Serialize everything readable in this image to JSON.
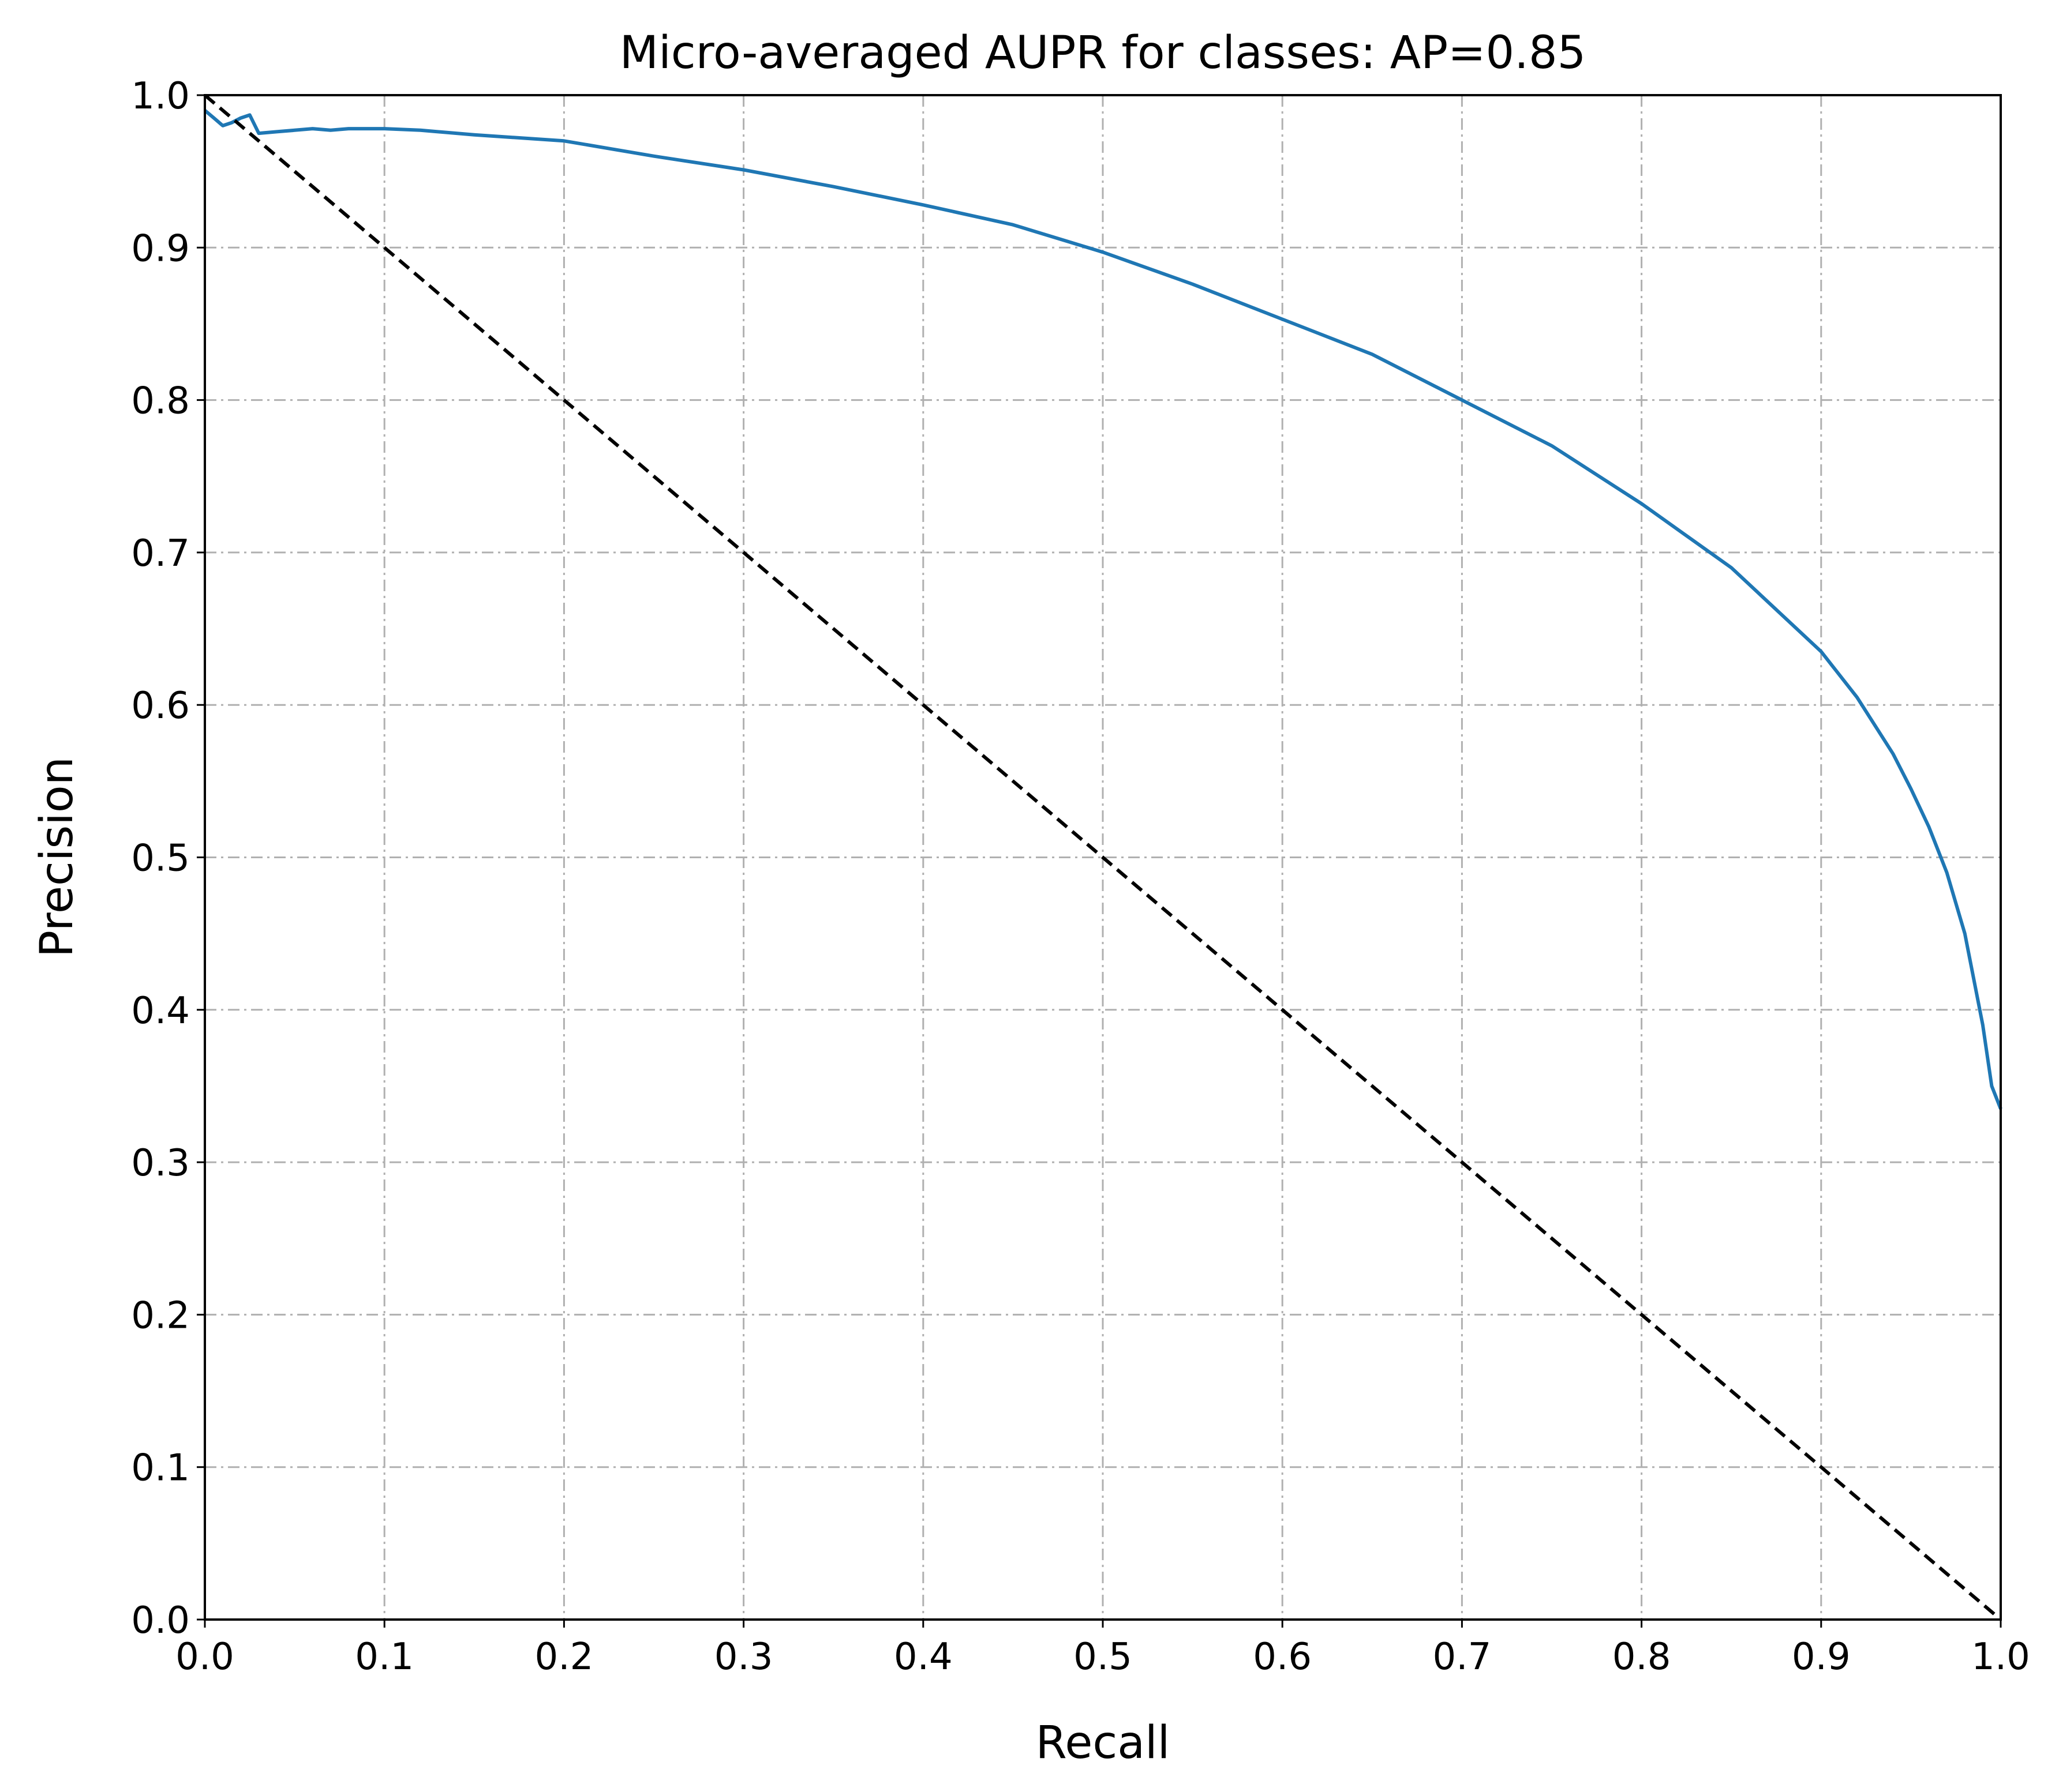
{
  "chart_data": {
    "type": "line",
    "title": "Micro-averaged AUPR for classes: AP=0.85",
    "xlabel": "Recall",
    "ylabel": "Precision",
    "xlim": [
      0.0,
      1.0
    ],
    "ylim": [
      0.0,
      1.0
    ],
    "xticks": [
      "0.0",
      "0.1",
      "0.2",
      "0.3",
      "0.4",
      "0.5",
      "0.6",
      "0.7",
      "0.8",
      "0.9",
      "1.0"
    ],
    "yticks": [
      "0.0",
      "0.1",
      "0.2",
      "0.3",
      "0.4",
      "0.5",
      "0.6",
      "0.7",
      "0.8",
      "0.9",
      "1.0"
    ],
    "grid": true,
    "legend": false,
    "series": [
      {
        "color": "#1f77b4",
        "style": "solid",
        "x": [
          0.0,
          0.005,
          0.01,
          0.015,
          0.02,
          0.025,
          0.03,
          0.04,
          0.05,
          0.06,
          0.07,
          0.08,
          0.1,
          0.12,
          0.15,
          0.2,
          0.25,
          0.3,
          0.35,
          0.4,
          0.45,
          0.5,
          0.55,
          0.6,
          0.65,
          0.7,
          0.75,
          0.8,
          0.85,
          0.9,
          0.92,
          0.94,
          0.95,
          0.96,
          0.97,
          0.98,
          0.99,
          0.995,
          1.0
        ],
        "y": [
          0.99,
          0.985,
          0.98,
          0.982,
          0.985,
          0.987,
          0.975,
          0.976,
          0.977,
          0.978,
          0.977,
          0.978,
          0.978,
          0.977,
          0.974,
          0.97,
          0.96,
          0.951,
          0.94,
          0.928,
          0.915,
          0.897,
          0.876,
          0.853,
          0.83,
          0.8,
          0.77,
          0.732,
          0.69,
          0.635,
          0.605,
          0.568,
          0.545,
          0.52,
          0.49,
          0.45,
          0.39,
          0.35,
          0.335
        ]
      },
      {
        "color": "#000000",
        "style": "dashed",
        "x": [
          0.0,
          1.0
        ],
        "y": [
          1.0,
          0.0
        ]
      }
    ]
  }
}
